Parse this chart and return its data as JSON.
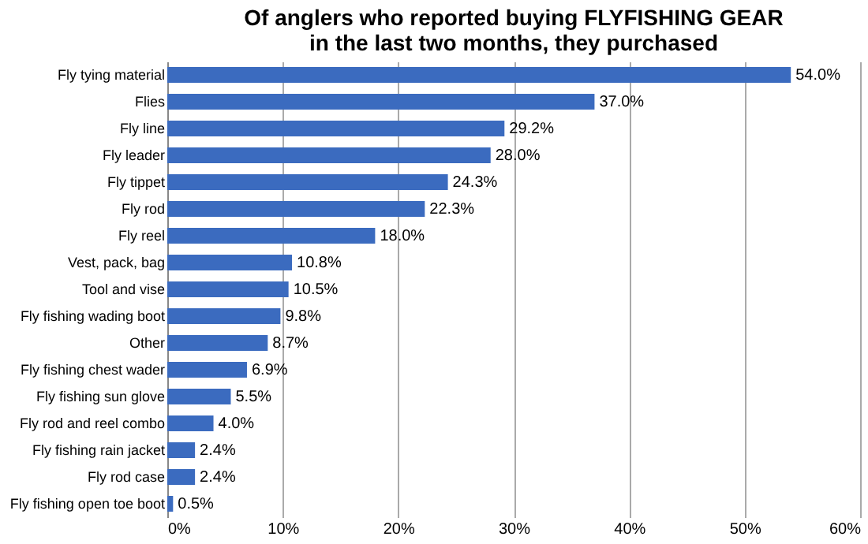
{
  "chart_data": {
    "type": "bar",
    "orientation": "horizontal",
    "title": [
      "Of anglers who reported buying FLYFISHING GEAR",
      "in the last two months, they purchased"
    ],
    "categories": [
      "Fly tying material",
      "Flies",
      "Fly line",
      "Fly leader",
      "Fly tippet",
      "Fly rod",
      "Fly reel",
      "Vest, pack, bag",
      "Tool and vise",
      "Fly fishing wading boot",
      "Other",
      "Fly fishing chest wader",
      "Fly fishing sun glove",
      "Fly rod and reel combo",
      "Fly fishing rain jacket",
      "Fly rod case",
      "Fly fishing open toe boot"
    ],
    "values": [
      54.0,
      37.0,
      29.2,
      28.0,
      24.3,
      22.3,
      18.0,
      10.8,
      10.5,
      9.8,
      8.7,
      6.9,
      5.5,
      4.0,
      2.4,
      2.4,
      0.5
    ],
    "value_labels": [
      "54.0%",
      "37.0%",
      "29.2%",
      "28.0%",
      "24.3%",
      "22.3%",
      "18.0%",
      "10.8%",
      "10.5%",
      "9.8%",
      "8.7%",
      "6.9%",
      "5.5%",
      "4.0%",
      "2.4%",
      "2.4%",
      "0.5%"
    ],
    "color": "#3b6bbf",
    "xlim": [
      0,
      60
    ],
    "xticks": [
      {
        "value": 0,
        "label": "0%"
      },
      {
        "value": 10,
        "label": "10%"
      },
      {
        "value": 20,
        "label": "20%"
      },
      {
        "value": 30,
        "label": "30%"
      },
      {
        "value": 40,
        "label": "40%"
      },
      {
        "value": 50,
        "label": "50%"
      },
      {
        "value": 60,
        "label": "60%"
      }
    ],
    "grid": "x"
  }
}
